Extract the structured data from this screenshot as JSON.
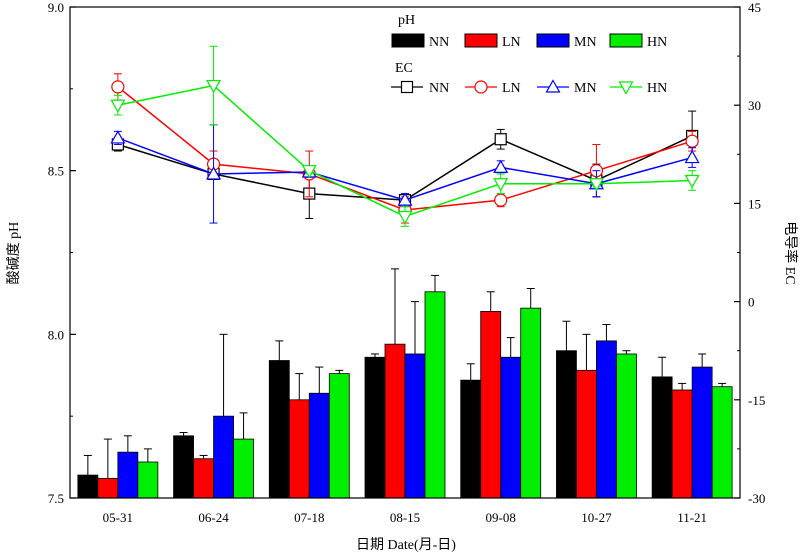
{
  "chart_data": {
    "type": "bar",
    "categories": [
      "05-31",
      "06-24",
      "07-18",
      "08-15",
      "09-08",
      "10-27",
      "11-21"
    ],
    "xlabel": "日期 Date(月-日)",
    "ylabel_left": "酸碱度 pH",
    "ylabel_right": "电导率 EC",
    "left_axis": {
      "ylim": [
        7.5,
        9.0
      ],
      "ticks": [
        "7.5",
        "8.0",
        "8.5",
        "9.0"
      ],
      "tick_values": [
        7.5,
        8.0,
        8.5,
        9.0
      ]
    },
    "right_axis": {
      "ylim": [
        -30,
        45
      ],
      "ticks": [
        "-30",
        "-15",
        "0",
        "15",
        "30",
        "45"
      ],
      "tick_values": [
        -30,
        -15,
        0,
        15,
        30,
        45
      ]
    },
    "legend": {
      "ph_title": "pH",
      "ec_title": "EC",
      "labels": [
        "NN",
        "LN",
        "MN",
        "HN"
      ]
    },
    "colors": {
      "NN": "#000000",
      "LN": "#ff0000",
      "MN": "#0000ff",
      "HN": "#00ee00"
    },
    "bar_series": [
      {
        "name": "NN",
        "values": [
          7.57,
          7.69,
          7.92,
          7.93,
          7.86,
          7.95,
          7.87
        ],
        "errors": [
          0.06,
          0.01,
          0.06,
          0.01,
          0.05,
          0.09,
          0.06
        ]
      },
      {
        "name": "LN",
        "values": [
          7.56,
          7.62,
          7.8,
          7.97,
          8.07,
          7.89,
          7.83
        ],
        "errors": [
          0.12,
          0.01,
          0.08,
          0.23,
          0.06,
          0.11,
          0.02
        ]
      },
      {
        "name": "MN",
        "values": [
          7.64,
          7.75,
          7.82,
          7.94,
          7.93,
          7.98,
          7.9
        ],
        "errors": [
          0.05,
          0.25,
          0.08,
          0.16,
          0.06,
          0.05,
          0.04
        ]
      },
      {
        "name": "HN",
        "values": [
          7.61,
          7.68,
          7.88,
          8.13,
          8.08,
          7.94,
          7.84
        ],
        "errors": [
          0.04,
          0.08,
          0.01,
          0.05,
          0.06,
          0.01,
          0.01
        ]
      }
    ],
    "line_series": [
      {
        "name": "NN",
        "marker": "square",
        "values": [
          24.0,
          19.5,
          16.5,
          15.5,
          24.8,
          18.5,
          25.3
        ],
        "errors": [
          1.0,
          0.8,
          3.8,
          0.5,
          1.5,
          2.5,
          3.8
        ]
      },
      {
        "name": "LN",
        "marker": "circle",
        "values": [
          32.8,
          21.0,
          19.5,
          14.0,
          15.5,
          20.0,
          24.5
        ],
        "errors": [
          2.0,
          2.0,
          3.5,
          2.0,
          1.0,
          4.0,
          1.5
        ]
      },
      {
        "name": "MN",
        "marker": "triangle-up",
        "values": [
          25.0,
          19.5,
          19.8,
          15.5,
          20.5,
          18.0,
          22.0
        ],
        "errors": [
          1.0,
          7.5,
          0.8,
          1.0,
          1.0,
          2.0,
          1.5
        ]
      },
      {
        "name": "HN",
        "marker": "triangle-down",
        "values": [
          30.0,
          33.0,
          20.0,
          13.0,
          18.0,
          18.0,
          18.5
        ],
        "errors": [
          1.5,
          6.0,
          0.5,
          1.5,
          1.5,
          0.5,
          1.5
        ]
      }
    ]
  }
}
